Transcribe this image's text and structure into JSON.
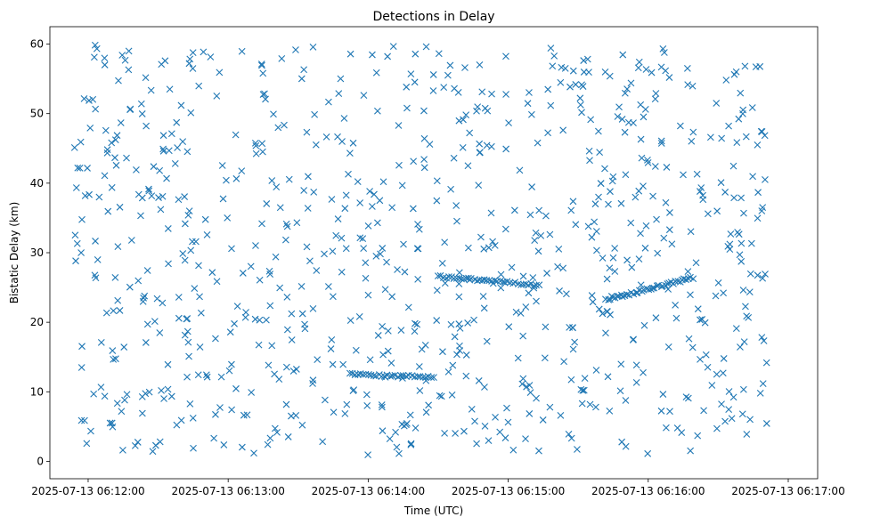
{
  "chart_data": {
    "type": "scatter",
    "title": "Detections in Delay",
    "xlabel": "Time (UTC)",
    "ylabel": "Bistatic Delay (km)",
    "marker": "x",
    "color": "#1f77b4",
    "xlim_seconds": [
      -16.4,
      312.6
    ],
    "ylim": [
      -2.5,
      62.5
    ],
    "x_ticks": [
      {
        "label": "2025-07-13 06:12:00",
        "seconds": 0
      },
      {
        "label": "2025-07-13 06:13:00",
        "seconds": 60
      },
      {
        "label": "2025-07-13 06:14:00",
        "seconds": 120
      },
      {
        "label": "2025-07-13 06:15:00",
        "seconds": 180
      },
      {
        "label": "2025-07-13 06:16:00",
        "seconds": 240
      },
      {
        "label": "2025-07-13 06:17:00",
        "seconds": 300
      }
    ],
    "y_ticks": [
      0,
      10,
      20,
      30,
      40,
      50,
      60
    ],
    "time_origin": "2025-07-13 06:12:00",
    "series": [
      {
        "name": "Detections",
        "tracks": [
          {
            "t_start": 112,
            "t_end": 148,
            "d_start": 12.5,
            "d_end": 12.1,
            "count": 32
          },
          {
            "t_start": 150,
            "t_end": 193,
            "d_start": 26.6,
            "d_end": 25.3,
            "count": 40
          },
          {
            "t_start": 222,
            "t_end": 259,
            "d_start": 23.2,
            "d_end": 26.4,
            "count": 42
          }
        ],
        "points_description": "approx. 900 detections spread uniformly between 06:11:54 and 06:16:51 over 0.5–60 km (clutter) plus the tracks above",
        "clutter": {
          "count": 830,
          "t_range": [
            -6,
            291
          ],
          "d_range": [
            0.5,
            60
          ],
          "seed": 20250713
        }
      }
    ]
  }
}
